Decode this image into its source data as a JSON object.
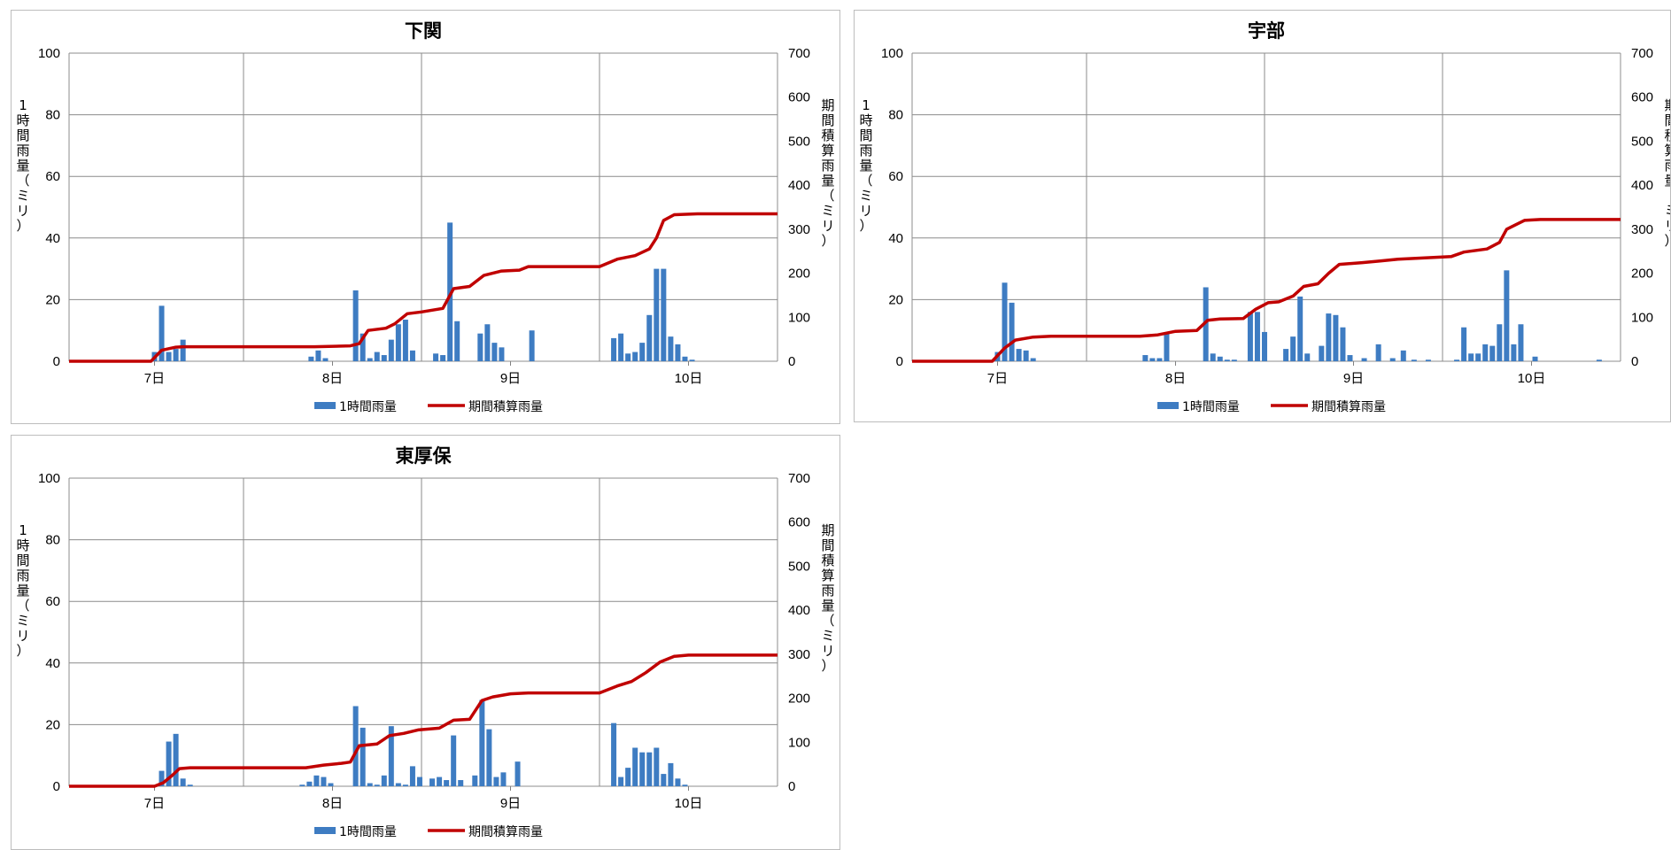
{
  "chart_data": [
    {
      "type": "bar+line",
      "title": "下関",
      "x_tick_labels": [
        "7日",
        "8日",
        "9日",
        "10日"
      ],
      "y_left": {
        "label": "1時間雨量（ミリ）",
        "ylim": [
          0,
          100
        ],
        "ticks": [
          "0",
          "20",
          "40",
          "60",
          "80",
          "100"
        ]
      },
      "y_right": {
        "label": "期間積算雨量（ミリ）",
        "ylim": [
          0,
          700
        ],
        "ticks": [
          "0",
          "100",
          "200",
          "300",
          "400",
          "500",
          "600",
          "700"
        ]
      },
      "legend": {
        "position": "bottom",
        "bar": "1時間雨量",
        "line": "期間積算雨量"
      },
      "grid": true,
      "bars": [
        {
          "x": 6.0,
          "y": 3
        },
        {
          "x": 6.04,
          "y": 18
        },
        {
          "x": 6.08,
          "y": 3
        },
        {
          "x": 6.12,
          "y": 4
        },
        {
          "x": 6.16,
          "y": 7
        },
        {
          "x": 6.88,
          "y": 1.5
        },
        {
          "x": 6.92,
          "y": 3.5
        },
        {
          "x": 6.96,
          "y": 1
        },
        {
          "x": 7.13,
          "y": 23
        },
        {
          "x": 7.17,
          "y": 9
        },
        {
          "x": 7.21,
          "y": 1
        },
        {
          "x": 7.25,
          "y": 3
        },
        {
          "x": 7.29,
          "y": 2
        },
        {
          "x": 7.33,
          "y": 7
        },
        {
          "x": 7.37,
          "y": 12
        },
        {
          "x": 7.41,
          "y": 13.5
        },
        {
          "x": 7.45,
          "y": 3.5
        },
        {
          "x": 7.58,
          "y": 2.5
        },
        {
          "x": 7.62,
          "y": 2
        },
        {
          "x": 7.66,
          "y": 45
        },
        {
          "x": 7.7,
          "y": 13
        },
        {
          "x": 7.83,
          "y": 9
        },
        {
          "x": 7.87,
          "y": 12
        },
        {
          "x": 7.91,
          "y": 6
        },
        {
          "x": 7.95,
          "y": 4.5
        },
        {
          "x": 8.12,
          "y": 10
        },
        {
          "x": 8.58,
          "y": 7.5
        },
        {
          "x": 8.62,
          "y": 9
        },
        {
          "x": 8.66,
          "y": 2.5
        },
        {
          "x": 8.7,
          "y": 3
        },
        {
          "x": 8.74,
          "y": 6
        },
        {
          "x": 8.78,
          "y": 15
        },
        {
          "x": 8.82,
          "y": 30
        },
        {
          "x": 8.86,
          "y": 30
        },
        {
          "x": 8.9,
          "y": 8
        },
        {
          "x": 8.94,
          "y": 5.5
        },
        {
          "x": 8.98,
          "y": 1.5
        },
        {
          "x": 9.02,
          "y": 0.5
        }
      ],
      "line": [
        [
          5.52,
          0
        ],
        [
          5.98,
          0
        ],
        [
          6.04,
          25
        ],
        [
          6.12,
          32
        ],
        [
          6.16,
          33
        ],
        [
          6.9,
          33
        ],
        [
          7.1,
          35
        ],
        [
          7.15,
          40
        ],
        [
          7.2,
          70
        ],
        [
          7.3,
          75
        ],
        [
          7.35,
          85
        ],
        [
          7.42,
          108
        ],
        [
          7.5,
          112
        ],
        [
          7.62,
          120
        ],
        [
          7.68,
          165
        ],
        [
          7.77,
          170
        ],
        [
          7.85,
          195
        ],
        [
          7.95,
          205
        ],
        [
          8.05,
          207
        ],
        [
          8.1,
          215
        ],
        [
          8.5,
          215
        ],
        [
          8.6,
          232
        ],
        [
          8.7,
          240
        ],
        [
          8.78,
          255
        ],
        [
          8.82,
          280
        ],
        [
          8.86,
          320
        ],
        [
          8.92,
          333
        ],
        [
          9.05,
          335
        ],
        [
          9.5,
          335
        ]
      ]
    },
    {
      "type": "bar+line",
      "title": "宇部",
      "x_tick_labels": [
        "7日",
        "8日",
        "9日",
        "10日"
      ],
      "y_left": {
        "label": "1時間雨量（ミリ）",
        "ylim": [
          0,
          100
        ],
        "ticks": [
          "0",
          "20",
          "40",
          "60",
          "80",
          "100"
        ]
      },
      "y_right": {
        "label": "期間積算雨量（ミリ）",
        "ylim": [
          0,
          700
        ],
        "ticks": [
          "0",
          "100",
          "200",
          "300",
          "400",
          "500",
          "600",
          "700"
        ]
      },
      "legend": {
        "position": "bottom",
        "bar": "1時間雨量",
        "line": "期間積算雨量"
      },
      "grid": true,
      "bars": [
        {
          "x": 6.0,
          "y": 3
        },
        {
          "x": 6.04,
          "y": 25.5
        },
        {
          "x": 6.08,
          "y": 19
        },
        {
          "x": 6.12,
          "y": 4
        },
        {
          "x": 6.16,
          "y": 3.5
        },
        {
          "x": 6.2,
          "y": 1
        },
        {
          "x": 6.83,
          "y": 2
        },
        {
          "x": 6.87,
          "y": 1
        },
        {
          "x": 6.91,
          "y": 1
        },
        {
          "x": 6.95,
          "y": 9
        },
        {
          "x": 7.17,
          "y": 24
        },
        {
          "x": 7.21,
          "y": 2.5
        },
        {
          "x": 7.25,
          "y": 1.5
        },
        {
          "x": 7.29,
          "y": 0.5
        },
        {
          "x": 7.33,
          "y": 0.5
        },
        {
          "x": 7.42,
          "y": 16
        },
        {
          "x": 7.46,
          "y": 16
        },
        {
          "x": 7.5,
          "y": 9.5
        },
        {
          "x": 7.62,
          "y": 4
        },
        {
          "x": 7.66,
          "y": 8
        },
        {
          "x": 7.7,
          "y": 21
        },
        {
          "x": 7.74,
          "y": 2.5
        },
        {
          "x": 7.82,
          "y": 5
        },
        {
          "x": 7.86,
          "y": 15.5
        },
        {
          "x": 7.9,
          "y": 15
        },
        {
          "x": 7.94,
          "y": 11
        },
        {
          "x": 7.98,
          "y": 2
        },
        {
          "x": 8.06,
          "y": 1
        },
        {
          "x": 8.14,
          "y": 5.5
        },
        {
          "x": 8.22,
          "y": 1
        },
        {
          "x": 8.28,
          "y": 3.5
        },
        {
          "x": 8.34,
          "y": 0.5
        },
        {
          "x": 8.42,
          "y": 0.5
        },
        {
          "x": 8.58,
          "y": 0.5
        },
        {
          "x": 8.62,
          "y": 11
        },
        {
          "x": 8.66,
          "y": 2.5
        },
        {
          "x": 8.7,
          "y": 2.5
        },
        {
          "x": 8.74,
          "y": 5.5
        },
        {
          "x": 8.78,
          "y": 5
        },
        {
          "x": 8.82,
          "y": 12
        },
        {
          "x": 8.86,
          "y": 29.5
        },
        {
          "x": 8.9,
          "y": 5.5
        },
        {
          "x": 8.94,
          "y": 12
        },
        {
          "x": 9.02,
          "y": 1.5
        },
        {
          "x": 9.38,
          "y": 0.5
        }
      ],
      "line": [
        [
          5.52,
          0
        ],
        [
          5.97,
          0
        ],
        [
          6.04,
          30
        ],
        [
          6.1,
          48
        ],
        [
          6.2,
          55
        ],
        [
          6.3,
          57
        ],
        [
          6.8,
          57
        ],
        [
          6.9,
          60
        ],
        [
          7.0,
          68
        ],
        [
          7.12,
          70
        ],
        [
          7.18,
          93
        ],
        [
          7.25,
          96
        ],
        [
          7.38,
          97
        ],
        [
          7.45,
          118
        ],
        [
          7.52,
          133
        ],
        [
          7.58,
          135
        ],
        [
          7.66,
          148
        ],
        [
          7.72,
          170
        ],
        [
          7.8,
          176
        ],
        [
          7.86,
          200
        ],
        [
          7.92,
          220
        ],
        [
          8.05,
          224
        ],
        [
          8.15,
          228
        ],
        [
          8.25,
          232
        ],
        [
          8.4,
          235
        ],
        [
          8.55,
          238
        ],
        [
          8.62,
          248
        ],
        [
          8.75,
          255
        ],
        [
          8.82,
          270
        ],
        [
          8.86,
          300
        ],
        [
          8.92,
          312
        ],
        [
          8.96,
          320
        ],
        [
          9.05,
          322
        ],
        [
          9.5,
          322
        ]
      ]
    },
    {
      "type": "bar+line",
      "title": "東厚保",
      "x_tick_labels": [
        "7日",
        "8日",
        "9日",
        "10日"
      ],
      "y_left": {
        "label": "1時間雨量（ミリ）",
        "ylim": [
          0,
          100
        ],
        "ticks": [
          "0",
          "20",
          "40",
          "60",
          "80",
          "100"
        ]
      },
      "y_right": {
        "label": "期間積算雨量（ミリ）",
        "ylim": [
          0,
          700
        ],
        "ticks": [
          "0",
          "100",
          "200",
          "300",
          "400",
          "500",
          "600",
          "700"
        ]
      },
      "legend": {
        "position": "bottom",
        "bar": "1時間雨量",
        "line": "期間積算雨量"
      },
      "grid": true,
      "bars": [
        {
          "x": 6.04,
          "y": 5
        },
        {
          "x": 6.08,
          "y": 14.5
        },
        {
          "x": 6.12,
          "y": 17
        },
        {
          "x": 6.16,
          "y": 2.5
        },
        {
          "x": 6.2,
          "y": 0.5
        },
        {
          "x": 6.83,
          "y": 0.5
        },
        {
          "x": 6.87,
          "y": 1.5
        },
        {
          "x": 6.91,
          "y": 3.5
        },
        {
          "x": 6.95,
          "y": 3
        },
        {
          "x": 6.99,
          "y": 1
        },
        {
          "x": 7.13,
          "y": 26
        },
        {
          "x": 7.17,
          "y": 19
        },
        {
          "x": 7.21,
          "y": 1
        },
        {
          "x": 7.25,
          "y": 0.5
        },
        {
          "x": 7.29,
          "y": 3.5
        },
        {
          "x": 7.33,
          "y": 19.5
        },
        {
          "x": 7.37,
          "y": 1
        },
        {
          "x": 7.41,
          "y": 0.5
        },
        {
          "x": 7.45,
          "y": 6.5
        },
        {
          "x": 7.49,
          "y": 3
        },
        {
          "x": 7.56,
          "y": 2.5
        },
        {
          "x": 7.6,
          "y": 3
        },
        {
          "x": 7.64,
          "y": 2
        },
        {
          "x": 7.68,
          "y": 16.5
        },
        {
          "x": 7.72,
          "y": 2
        },
        {
          "x": 7.8,
          "y": 3.5
        },
        {
          "x": 7.84,
          "y": 28
        },
        {
          "x": 7.88,
          "y": 18.5
        },
        {
          "x": 7.92,
          "y": 3
        },
        {
          "x": 7.96,
          "y": 4.5
        },
        {
          "x": 8.04,
          "y": 8
        },
        {
          "x": 8.58,
          "y": 20.5
        },
        {
          "x": 8.62,
          "y": 3
        },
        {
          "x": 8.66,
          "y": 6
        },
        {
          "x": 8.7,
          "y": 12.5
        },
        {
          "x": 8.74,
          "y": 11
        },
        {
          "x": 8.78,
          "y": 11
        },
        {
          "x": 8.82,
          "y": 12.5
        },
        {
          "x": 8.86,
          "y": 4
        },
        {
          "x": 8.9,
          "y": 7.5
        },
        {
          "x": 8.94,
          "y": 2.5
        },
        {
          "x": 8.98,
          "y": 0.5
        }
      ],
      "line": [
        [
          5.52,
          0
        ],
        [
          6.0,
          0
        ],
        [
          6.05,
          8
        ],
        [
          6.1,
          25
        ],
        [
          6.14,
          40
        ],
        [
          6.2,
          42
        ],
        [
          6.85,
          42
        ],
        [
          6.95,
          48
        ],
        [
          7.05,
          52
        ],
        [
          7.1,
          55
        ],
        [
          7.15,
          92
        ],
        [
          7.25,
          96
        ],
        [
          7.32,
          115
        ],
        [
          7.4,
          120
        ],
        [
          7.48,
          128
        ],
        [
          7.6,
          132
        ],
        [
          7.68,
          150
        ],
        [
          7.77,
          152
        ],
        [
          7.84,
          195
        ],
        [
          7.9,
          203
        ],
        [
          8.0,
          210
        ],
        [
          8.1,
          212
        ],
        [
          8.5,
          212
        ],
        [
          8.6,
          228
        ],
        [
          8.68,
          238
        ],
        [
          8.76,
          258
        ],
        [
          8.84,
          282
        ],
        [
          8.92,
          295
        ],
        [
          9.0,
          298
        ],
        [
          9.5,
          298
        ]
      ]
    }
  ]
}
